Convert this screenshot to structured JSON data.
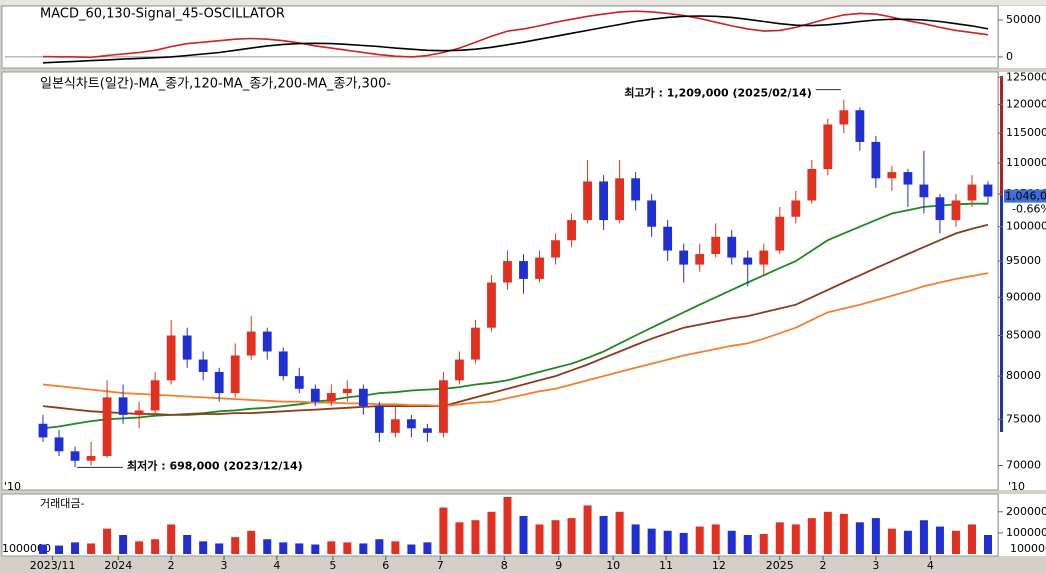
{
  "chart_data": [
    {
      "type": "line",
      "title": "MACD_60,130-Signal_45-OSCILLATOR",
      "x": [
        0,
        1,
        2,
        3,
        4,
        5,
        6,
        7,
        8,
        9,
        10,
        11,
        12,
        13,
        14,
        15,
        16,
        17,
        18,
        19,
        20,
        21,
        22,
        23,
        24,
        25,
        26,
        27,
        28,
        29,
        30,
        31,
        32,
        33,
        34,
        35,
        36,
        37,
        38,
        39,
        40,
        41,
        42,
        43,
        44,
        45,
        46,
        47,
        48,
        49,
        50,
        51,
        52,
        53,
        54,
        55,
        56,
        57,
        58,
        59
      ],
      "xlim": [
        -0.5,
        59.5
      ],
      "ylim": [
        -15000,
        69000
      ],
      "yticks": [
        0,
        50000
      ],
      "series": [
        {
          "name": "MACD_60,130",
          "color": "#d02020",
          "values": [
            500,
            200,
            0,
            -500,
            2000,
            4000,
            6000,
            9000,
            14000,
            18000,
            20000,
            22000,
            24000,
            25000,
            24000,
            22000,
            19000,
            15000,
            12000,
            9000,
            6000,
            3000,
            1000,
            0,
            2000,
            6000,
            12000,
            20000,
            28000,
            35000,
            38000,
            42000,
            47000,
            51000,
            55000,
            58000,
            61000,
            62000,
            61000,
            59000,
            56000,
            52000,
            47000,
            42000,
            38000,
            35000,
            36000,
            40000,
            46000,
            52000,
            57000,
            59000,
            58000,
            54000,
            49000,
            45000,
            40000,
            36000,
            33000,
            30000
          ]
        },
        {
          "name": "Signal_45",
          "color": "#000000",
          "values": [
            -8000,
            -7000,
            -6000,
            -5000,
            -4000,
            -3000,
            -2000,
            -1000,
            0,
            2000,
            4000,
            6000,
            9000,
            12000,
            15000,
            17000,
            18000,
            18500,
            18000,
            17000,
            15500,
            14000,
            12000,
            10500,
            9000,
            8500,
            9000,
            10500,
            13000,
            16500,
            20000,
            24000,
            28000,
            32000,
            36000,
            40000,
            44000,
            48000,
            51000,
            53500,
            55000,
            55500,
            55000,
            53500,
            51000,
            48000,
            45000,
            43000,
            42500,
            43500,
            45500,
            48000,
            50000,
            51000,
            51000,
            50000,
            48000,
            45000,
            42000,
            38000
          ]
        }
      ]
    },
    {
      "type": "candlestick",
      "title": "일본식차트(일간)-MA_종가,120-MA_종가,200-MA_종가,300-",
      "x": [
        0,
        1,
        2,
        3,
        4,
        5,
        6,
        7,
        8,
        9,
        10,
        11,
        12,
        13,
        14,
        15,
        16,
        17,
        18,
        19,
        20,
        21,
        22,
        23,
        24,
        25,
        26,
        27,
        28,
        29,
        30,
        31,
        32,
        33,
        34,
        35,
        36,
        37,
        38,
        39,
        40,
        41,
        42,
        43,
        44,
        45,
        46,
        47,
        48,
        49,
        50,
        51,
        52,
        53,
        54,
        55,
        56,
        57,
        58,
        59
      ],
      "xlim": [
        -0.5,
        59.5
      ],
      "ylim": [
        68500,
        126000
      ],
      "log_scale": true,
      "yticks": [
        70000,
        75000,
        80000,
        85000,
        90000,
        95000,
        100000,
        105000,
        110000,
        115000,
        120000,
        125000
      ],
      "up_color": "#e03020",
      "down_color": "#2030d0",
      "open": [
        74500,
        73000,
        71500,
        70500,
        71000,
        77500,
        75500,
        76000,
        79500,
        85000,
        82000,
        80500,
        78000,
        82500,
        85500,
        83000,
        80000,
        78500,
        77000,
        78000,
        78500,
        76500,
        73500,
        75000,
        74000,
        73500,
        79500,
        82000,
        86000,
        92000,
        95000,
        92500,
        95500,
        98000,
        101000,
        107000,
        101000,
        107500,
        104000,
        100000,
        96500,
        94500,
        96000,
        98500,
        95500,
        94500,
        96500,
        101500,
        104000,
        109000,
        116500,
        119000,
        113500,
        107500,
        108500,
        106500,
        104500,
        101000,
        104000,
        106500
      ],
      "high": [
        75500,
        73800,
        72000,
        72500,
        79500,
        79000,
        77000,
        80500,
        87000,
        86000,
        83000,
        81000,
        84000,
        87500,
        86000,
        83500,
        81000,
        79000,
        79000,
        79500,
        79000,
        77000,
        76500,
        75500,
        74500,
        80500,
        83000,
        87000,
        93000,
        96500,
        96000,
        96500,
        99000,
        102000,
        110500,
        108000,
        110500,
        108500,
        105000,
        101000,
        97500,
        97500,
        100500,
        99500,
        96500,
        97500,
        103000,
        105500,
        110500,
        117500,
        120900,
        119500,
        114500,
        109500,
        109000,
        112000,
        105000,
        105000,
        108000,
        107000
      ],
      "low": [
        72500,
        71000,
        69800,
        70000,
        70800,
        74500,
        74000,
        75500,
        79000,
        81000,
        79500,
        77000,
        77500,
        82000,
        82000,
        79500,
        78000,
        76500,
        76500,
        77000,
        75500,
        72500,
        73000,
        73000,
        72500,
        73000,
        79000,
        81500,
        85500,
        91000,
        90500,
        92000,
        94500,
        97000,
        100500,
        99500,
        100500,
        102500,
        98500,
        95000,
        92000,
        93500,
        95500,
        94500,
        91500,
        93000,
        96000,
        100500,
        103500,
        108000,
        115000,
        112000,
        106000,
        105500,
        103000,
        102000,
        99000,
        100000,
        103000,
        103500
      ],
      "close": [
        73000,
        71500,
        70500,
        71000,
        77500,
        75500,
        76000,
        79500,
        85000,
        82000,
        80500,
        78000,
        82500,
        85500,
        83000,
        80000,
        78500,
        77000,
        78000,
        78500,
        76500,
        73500,
        75000,
        74000,
        73500,
        79500,
        82000,
        86000,
        92000,
        95000,
        92500,
        95500,
        98000,
        101000,
        107000,
        101000,
        107500,
        104000,
        100000,
        96500,
        94500,
        96000,
        98500,
        95500,
        94500,
        96500,
        101500,
        104000,
        109000,
        116500,
        119000,
        113500,
        107500,
        108500,
        106500,
        104500,
        101000,
        104000,
        106500,
        104600
      ],
      "series": [
        {
          "name": "MA_종가,120",
          "color": "#1e8a1e",
          "values": [
            74000,
            74200,
            74500,
            74800,
            75000,
            75100,
            75200,
            75400,
            75500,
            75600,
            75700,
            75900,
            76000,
            76200,
            76300,
            76500,
            76700,
            77000,
            77200,
            77500,
            77700,
            78000,
            78100,
            78300,
            78400,
            78500,
            78700,
            79000,
            79200,
            79500,
            80000,
            80500,
            81000,
            81500,
            82200,
            83000,
            84000,
            85000,
            86000,
            87000,
            88000,
            89000,
            90000,
            91000,
            92000,
            93000,
            94000,
            95000,
            96500,
            98000,
            99000,
            100000,
            101000,
            102000,
            102500,
            103000,
            103200,
            103400,
            103500,
            103500
          ]
        },
        {
          "name": "MA_종가,200",
          "color": "#8b3a1a",
          "values": [
            76500,
            76300,
            76100,
            75900,
            75800,
            75700,
            75600,
            75600,
            75500,
            75500,
            75600,
            75600,
            75700,
            75700,
            75800,
            75900,
            76000,
            76100,
            76200,
            76300,
            76400,
            76500,
            76500,
            76500,
            76500,
            76500,
            77000,
            77500,
            78000,
            78500,
            79000,
            79500,
            80000,
            80700,
            81400,
            82200,
            83000,
            83800,
            84600,
            85300,
            86000,
            86400,
            86800,
            87200,
            87500,
            88000,
            88500,
            89000,
            90000,
            91000,
            92000,
            93000,
            94000,
            95000,
            96000,
            97000,
            98000,
            99000,
            99700,
            100300
          ]
        },
        {
          "name": "MA_종가,300",
          "color": "#f08030",
          "values": [
            79000,
            78800,
            78600,
            78400,
            78200,
            78000,
            77900,
            77800,
            77700,
            77600,
            77500,
            77400,
            77300,
            77200,
            77100,
            77000,
            77000,
            76900,
            76900,
            76800,
            76800,
            76700,
            76700,
            76600,
            76600,
            76500,
            76700,
            76900,
            77000,
            77400,
            77800,
            78200,
            78500,
            79000,
            79500,
            80000,
            80500,
            81000,
            81500,
            82000,
            82500,
            82900,
            83300,
            83700,
            84000,
            84600,
            85300,
            86000,
            87000,
            88000,
            88500,
            89000,
            89600,
            90200,
            90800,
            91500,
            92000,
            92500,
            92900,
            93300
          ]
        }
      ],
      "high_label": "최고가 : 1,209,000 (2025/02/14)",
      "high_color": "#d02020",
      "low_label": "최저가 : 698,000 (2023/12/14)",
      "low_color": "#1a2fb0",
      "last_label": "1,046,000",
      "last_change": "-0.66%",
      "scale_label": "'10"
    },
    {
      "type": "bar",
      "title": "거래대금-",
      "x": [
        0,
        1,
        2,
        3,
        4,
        5,
        6,
        7,
        8,
        9,
        10,
        11,
        12,
        13,
        14,
        15,
        16,
        17,
        18,
        19,
        20,
        21,
        22,
        23,
        24,
        25,
        26,
        27,
        28,
        29,
        30,
        31,
        32,
        33,
        34,
        35,
        36,
        37,
        38,
        39,
        40,
        41,
        42,
        43,
        44,
        45,
        46,
        47,
        48,
        49,
        50,
        51,
        52,
        53,
        54,
        55,
        56,
        57,
        58,
        59
      ],
      "xlim": [
        -0.5,
        59.5
      ],
      "ylim": [
        0,
        270000
      ],
      "yticks": [
        100000,
        200000
      ],
      "unit_label": "1000000",
      "up_color": "#e03020",
      "down_color": "#2030d0",
      "values": [
        45000,
        40000,
        55000,
        50000,
        120000,
        90000,
        60000,
        70000,
        140000,
        90000,
        60000,
        50000,
        80000,
        110000,
        70000,
        55000,
        50000,
        45000,
        60000,
        55000,
        50000,
        70000,
        60000,
        45000,
        55000,
        220000,
        150000,
        160000,
        200000,
        270000,
        180000,
        140000,
        160000,
        170000,
        230000,
        180000,
        200000,
        140000,
        120000,
        110000,
        100000,
        130000,
        140000,
        110000,
        90000,
        95000,
        150000,
        140000,
        170000,
        200000,
        190000,
        150000,
        170000,
        120000,
        110000,
        160000,
        130000,
        110000,
        140000,
        90000
      ],
      "xticks": [
        {
          "value": 0.6,
          "label": "2023/11"
        },
        {
          "value": 4.7,
          "label": "2024"
        },
        {
          "value": 8.0,
          "label": "2"
        },
        {
          "value": 11.3,
          "label": "3"
        },
        {
          "value": 14.6,
          "label": "4"
        },
        {
          "value": 18.1,
          "label": "5"
        },
        {
          "value": 21.4,
          "label": "6"
        },
        {
          "value": 24.8,
          "label": "7"
        },
        {
          "value": 28.8,
          "label": "8"
        },
        {
          "value": 32.2,
          "label": "9"
        },
        {
          "value": 35.6,
          "label": "10"
        },
        {
          "value": 38.9,
          "label": "11"
        },
        {
          "value": 42.2,
          "label": "12"
        },
        {
          "value": 46.0,
          "label": "2025"
        },
        {
          "value": 48.7,
          "label": "2"
        },
        {
          "value": 52.0,
          "label": "3"
        },
        {
          "value": 55.4,
          "label": "4"
        }
      ]
    }
  ]
}
